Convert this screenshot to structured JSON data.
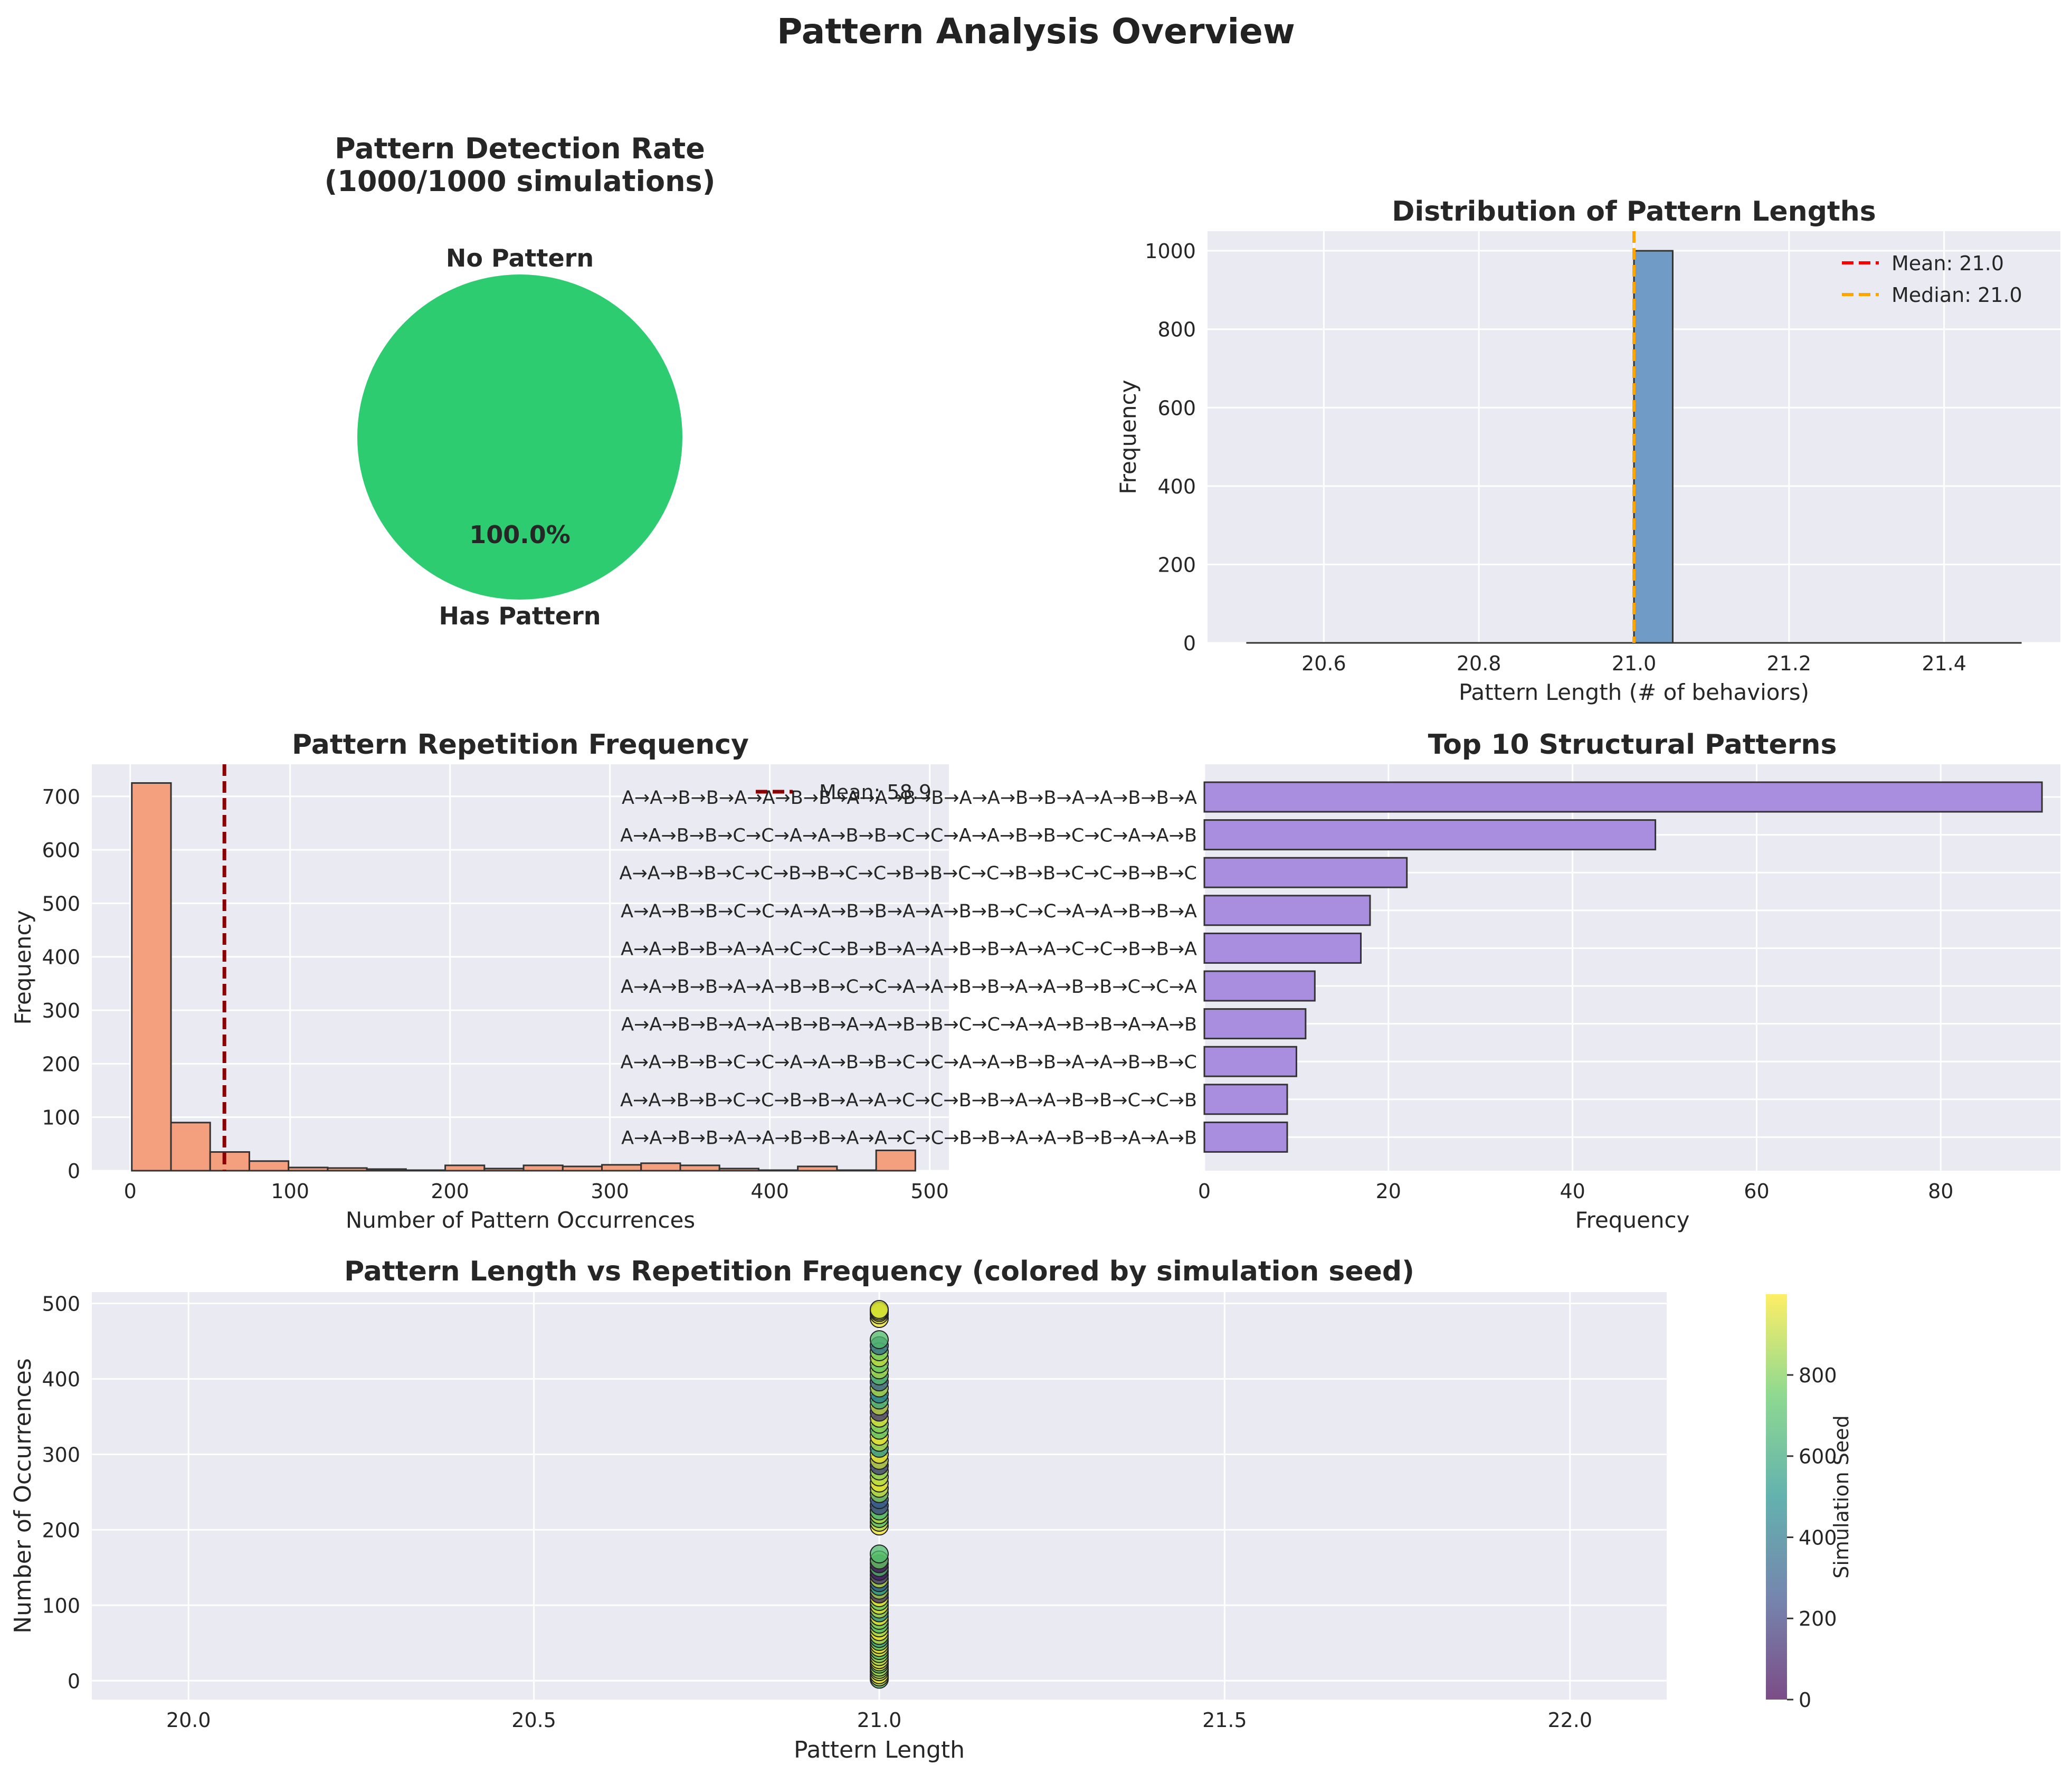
{
  "figure_title": "Pattern Analysis Overview",
  "chart_data": [
    {
      "id": "detection",
      "type": "pie",
      "title": "Pattern Detection Rate\n(1000/1000 simulations)",
      "slices": [
        {
          "label": "No Pattern",
          "value": 0,
          "pct_label": "0.0%",
          "color": "#e74c3c"
        },
        {
          "label": "Has Pattern",
          "value": 1000,
          "pct_label": "100.0%",
          "color": "#2ecc71"
        }
      ]
    },
    {
      "id": "lengths",
      "type": "bar",
      "title": "Distribution of Pattern Lengths",
      "xlabel": "Pattern Length (# of behaviors)",
      "ylabel": "Frequency",
      "xlim": [
        20.45,
        21.55
      ],
      "ylim": [
        0,
        1050
      ],
      "xticks": [
        20.6,
        20.8,
        21.0,
        21.2,
        21.4
      ],
      "xtick_labels": [
        "20.6",
        "20.8",
        "21.0",
        "21.2",
        "21.4"
      ],
      "yticks": [
        0,
        200,
        400,
        600,
        800,
        1000
      ],
      "bins": [
        {
          "x0": 21.0,
          "x1": 21.05,
          "value": 1000
        }
      ],
      "baseline_range": [
        20.5,
        21.5
      ],
      "bar_color": "#6f9bc6",
      "mean": 21.0,
      "median": 21.0,
      "legend": [
        {
          "label": "Mean: 21.0",
          "color": "#ff0000"
        },
        {
          "label": "Median: 21.0",
          "color": "#ffa500"
        }
      ],
      "legend_position": "top-right",
      "grid": true
    },
    {
      "id": "repetition",
      "type": "bar",
      "title": "Pattern Repetition Frequency",
      "xlabel": "Number of Pattern Occurrences",
      "ylabel": "Frequency",
      "xlim": [
        -24,
        512
      ],
      "ylim": [
        0,
        760
      ],
      "xticks": [
        0,
        100,
        200,
        300,
        400,
        500
      ],
      "yticks": [
        0,
        100,
        200,
        300,
        400,
        500,
        600,
        700
      ],
      "bin_start": 1,
      "bin_width": 24.5,
      "counts": [
        725,
        90,
        35,
        18,
        6,
        5,
        3,
        1,
        10,
        4,
        10,
        8,
        11,
        14,
        10,
        4,
        1,
        8,
        1,
        38
      ],
      "bar_color": "#f4a07e",
      "mean": 58.9,
      "legend": [
        {
          "label": "Mean: 58.9",
          "color": "#8b0000"
        }
      ],
      "legend_position": "top-right",
      "grid": true
    },
    {
      "id": "top10",
      "type": "bar",
      "orientation": "horizontal",
      "title": "Top 10 Structural Patterns",
      "xlabel": "Frequency",
      "xlim": [
        0,
        93
      ],
      "xticks": [
        0,
        20,
        40,
        60,
        80
      ],
      "categories": [
        "A→A→B→B→A→A→B→B→A→A→B→B→A→A→B→B→A→A→B→B→A",
        "A→A→B→B→C→C→A→A→B→B→C→C→A→A→B→B→C→C→A→A→B",
        "A→A→B→B→C→C→B→B→C→C→B→B→C→C→B→B→C→C→B→B→C",
        "A→A→B→B→C→C→A→A→B→B→A→A→B→B→C→C→A→A→B→B→A",
        "A→A→B→B→A→A→C→C→B→B→A→A→B→B→A→A→C→C→B→B→A",
        "A→A→B→B→A→A→B→B→C→C→A→A→B→B→A→A→B→B→C→C→A",
        "A→A→B→B→A→A→B→B→A→A→B→B→C→C→A→A→B→B→A→A→B",
        "A→A→B→B→C→C→A→A→B→B→C→C→A→A→B→B→A→A→B→B→C",
        "A→A→B→B→C→C→B→B→A→A→C→C→B→B→A→A→B→B→C→C→B",
        "A→A→B→B→A→A→B→B→A→A→C→C→B→B→A→A→B→B→A→A→B"
      ],
      "values": [
        91,
        49,
        22,
        18,
        17,
        12,
        11,
        10,
        9,
        9
      ],
      "bar_color": "#a98ee0",
      "grid": true
    },
    {
      "id": "scatter",
      "type": "scatter",
      "title": "Pattern Length vs Repetition Frequency (colored by simulation seed)",
      "xlabel": "Pattern Length",
      "ylabel": "Number of Occurrences",
      "xlim": [
        19.86,
        22.14
      ],
      "ylim": [
        -25,
        515
      ],
      "xticks": [
        20.0,
        20.5,
        21.0,
        21.5,
        22.0
      ],
      "xtick_labels": [
        "20.0",
        "20.5",
        "21.0",
        "21.5",
        "22.0"
      ],
      "yticks": [
        0,
        100,
        200,
        300,
        400,
        500
      ],
      "x_value": 21,
      "points_y": [
        2,
        5,
        8,
        12,
        15,
        18,
        22,
        25,
        28,
        32,
        36,
        40,
        44,
        48,
        52,
        56,
        60,
        65,
        70,
        75,
        80,
        85,
        90,
        95,
        100,
        105,
        110,
        115,
        120,
        125,
        130,
        135,
        140,
        145,
        150,
        155,
        160,
        168,
        205,
        210,
        215,
        220,
        225,
        232,
        240,
        248,
        255,
        262,
        270,
        278,
        285,
        292,
        300,
        308,
        316,
        324,
        332,
        340,
        348,
        356,
        364,
        372,
        380,
        388,
        396,
        404,
        412,
        420,
        428,
        436,
        444,
        452,
        480,
        485,
        488,
        490,
        492
      ],
      "points_seed": [
        700,
        950,
        980,
        900,
        850,
        820,
        760,
        980,
        920,
        880,
        810,
        740,
        990,
        950,
        700,
        600,
        900,
        980,
        850,
        700,
        820,
        960,
        500,
        880,
        930,
        760,
        980,
        120,
        850,
        500,
        300,
        900,
        150,
        80,
        700,
        40,
        760,
        690,
        980,
        870,
        720,
        880,
        650,
        200,
        300,
        800,
        900,
        960,
        880,
        820,
        180,
        910,
        960,
        500,
        880,
        970,
        700,
        820,
        930,
        150,
        900,
        600,
        420,
        880,
        300,
        700,
        860,
        760,
        900,
        780,
        350,
        700,
        980,
        960,
        970,
        900,
        940
      ],
      "colorbar": {
        "label": "Simulation Seed",
        "ticks": [
          0,
          200,
          400,
          600,
          800
        ],
        "range": [
          0,
          999
        ]
      },
      "grid": true
    }
  ]
}
